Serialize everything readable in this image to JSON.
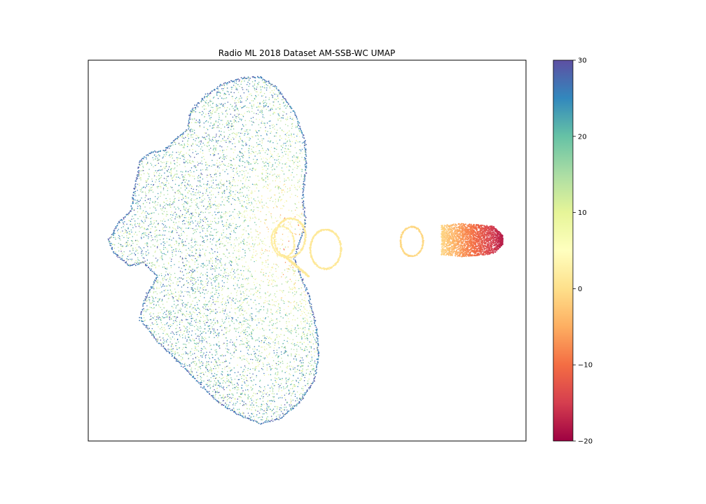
{
  "chart_data": {
    "type": "scatter",
    "title": "Radio ML 2018 Dataset AM-SSB-WC UMAP",
    "xlabel": "",
    "ylabel": "",
    "x_ticks_visible": false,
    "y_ticks_visible": false,
    "colormap": "Spectral",
    "colorbar": {
      "label": "",
      "range": [
        -20,
        30
      ],
      "ticks": [
        -20,
        -10,
        0,
        10,
        20,
        30
      ],
      "tick_labels": [
        "−20",
        "−10",
        "0",
        "10",
        "20",
        "30"
      ],
      "stops": [
        "#9e0142",
        "#d53e4f",
        "#f46d43",
        "#fdae61",
        "#fee08b",
        "#ffffbf",
        "#e6f598",
        "#abdda4",
        "#66c2a5",
        "#3288bd",
        "#5e4fa2"
      ]
    },
    "series": [
      {
        "cluster": "large-cloud",
        "snr_range_db": [
          4,
          30
        ]
      },
      {
        "cluster": "swirl-rings-left",
        "snr_range_db": [
          0,
          2
        ]
      },
      {
        "cluster": "small-ring",
        "snr_range_db": [
          -2,
          -1
        ]
      },
      {
        "cluster": "elongated-blob",
        "snr_range_db": [
          -20,
          -2
        ]
      }
    ]
  }
}
